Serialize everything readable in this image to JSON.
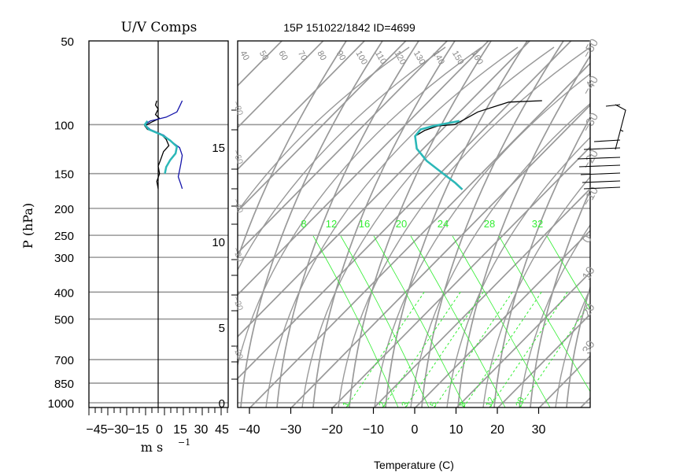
{
  "chart_data": [
    {
      "type": "line",
      "title": "U/V Comps",
      "xlabel": "m s",
      "xlabel_sup": "−1",
      "ylabel": "P (hPa)",
      "xlim": [
        -50,
        50
      ],
      "x_ticks": [
        "−45",
        "−30",
        "−15",
        "0",
        "15",
        "30",
        "45"
      ],
      "y_scale": "log",
      "ylim": [
        1000,
        50
      ],
      "y_ticks": [
        "50",
        "100",
        "150",
        "200",
        "250",
        "300",
        "400",
        "500",
        "700",
        "850",
        "1000"
      ],
      "grid": "horizontal",
      "series": [
        {
          "color": "#000000",
          "points": [
            [
              -1,
              82
            ],
            [
              -2,
              85
            ],
            [
              0,
              88
            ],
            [
              -2,
              92
            ],
            [
              1,
              95
            ],
            [
              -5,
              98
            ],
            [
              -10,
              101
            ],
            [
              -8,
              104
            ],
            [
              2,
              108
            ],
            [
              6,
              113
            ],
            [
              8,
              119
            ],
            [
              4,
              125
            ],
            [
              2,
              133
            ],
            [
              0,
              141
            ],
            [
              1,
              150
            ],
            [
              -1,
              160
            ],
            [
              0,
              170
            ]
          ]
        },
        {
          "color": "#1515aa",
          "points": [
            [
              18,
              82
            ],
            [
              16,
              86
            ],
            [
              14,
              90
            ],
            [
              6,
              94
            ],
            [
              -6,
              97
            ],
            [
              -10,
              100
            ],
            [
              -6,
              104
            ],
            [
              4,
              109
            ],
            [
              10,
              115
            ],
            [
              16,
              121
            ],
            [
              18,
              129
            ],
            [
              17,
              138
            ],
            [
              16,
              146
            ],
            [
              15,
              154
            ],
            [
              17,
              164
            ],
            [
              18,
              170
            ]
          ]
        },
        {
          "color": "#2cb8b8",
          "points": [
            [
              -8,
              97
            ],
            [
              -10,
              100
            ],
            [
              -7,
              104
            ],
            [
              3,
              109
            ],
            [
              9,
              114
            ],
            [
              14,
              120
            ],
            [
              13,
              127
            ],
            [
              9,
              134
            ],
            [
              6,
              142
            ],
            [
              5,
              150
            ]
          ]
        }
      ]
    },
    {
      "type": "line",
      "title": "15P 151022/1842 ID=4699",
      "xlabel": "Temperature (C)",
      "xlim": [
        -43,
        42
      ],
      "x_ticks": [
        "−40",
        "−30",
        "−20",
        "−10",
        "0",
        "10",
        "20",
        "30"
      ],
      "ylim": [
        0,
        18
      ],
      "height_ticks": [
        "0",
        "5",
        "10",
        "15"
      ],
      "theta_labels": [
        "40",
        "50",
        "60",
        "70",
        "80",
        "90",
        "100",
        "110",
        "120",
        "130",
        "140",
        "150",
        "160"
      ],
      "moist_labels": [
        "8",
        "12",
        "16",
        "20",
        "24",
        "28",
        "32"
      ],
      "mixing_labels": [
        "1",
        "2",
        "3",
        "5",
        "8",
        "12",
        "20"
      ],
      "edge_labels": [
        "−50",
        "−40",
        "−30",
        "−20",
        "−10",
        "0",
        "10",
        "20",
        "30"
      ],
      "left_edge_labels": [
        "−80",
        "−60",
        "−40",
        "−20",
        "−20",
        "−20"
      ],
      "colors": {
        "grid": "#999999",
        "moist": "#33ee33",
        "sounding": "#000000",
        "dew": "#2cb8b8"
      },
      "series": [
        {
          "name": "",
          "color": "#000000",
          "points": [
            [
              16,
              82
            ],
            [
              8,
              83
            ],
            [
              1,
              90
            ],
            [
              -2,
              96
            ],
            [
              -4,
              100
            ],
            [
              -8,
              101
            ],
            [
              -11,
              105
            ],
            [
              -13,
              110
            ],
            [
              -12,
              122
            ],
            [
              -9,
              135
            ],
            [
              -5,
              148
            ],
            [
              -1,
              162
            ],
            [
              1,
              171
            ]
          ]
        },
        {
          "name": "",
          "color": "#2cb8b8",
          "points": [
            [
              -3,
              97
            ],
            [
              -6,
              99
            ],
            [
              -9,
              101
            ],
            [
              -12,
              104
            ],
            [
              -13,
              110
            ],
            [
              -12,
              122
            ],
            [
              -9,
              135
            ],
            [
              -5,
              148
            ],
            [
              -1,
              162
            ],
            [
              1,
              171
            ]
          ]
        }
      ]
    }
  ]
}
